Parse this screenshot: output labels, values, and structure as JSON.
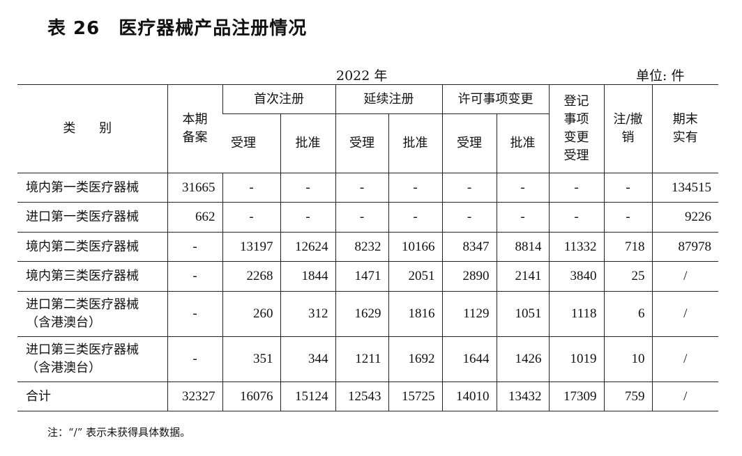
{
  "title": "表 26　医疗器械产品注册情况",
  "year": "2022 年",
  "unit": "单位: 件",
  "headers": {
    "category": "类 别",
    "filing": "本期\n备案",
    "first_reg": "首次注册",
    "renewal": "延续注册",
    "license_change": "许可事项变更",
    "accept": "受理",
    "approve": "批准",
    "reg_change": "登记\n事项\n变更\n受理",
    "cancel": "注/撤\n销",
    "end_total": "期末\n实有"
  },
  "rows": [
    {
      "label": "境内第一类医疗器械",
      "values": [
        "31665",
        "-",
        "-",
        "-",
        "-",
        "-",
        "-",
        "-",
        "-",
        "134515"
      ]
    },
    {
      "label": "进口第一类医疗器械",
      "values": [
        "662",
        "-",
        "-",
        "-",
        "-",
        "-",
        "-",
        "-",
        "-",
        "9226"
      ]
    },
    {
      "label": "境内第二类医疗器械",
      "values": [
        "-",
        "13197",
        "12624",
        "8232",
        "10166",
        "8347",
        "8814",
        "11332",
        "718",
        "87978"
      ]
    },
    {
      "label": "境内第三类医疗器械",
      "values": [
        "-",
        "2268",
        "1844",
        "1471",
        "2051",
        "2890",
        "2141",
        "3840",
        "25",
        "/"
      ]
    },
    {
      "label": "进口第二类医疗器械\n（含港澳台）",
      "values": [
        "-",
        "260",
        "312",
        "1629",
        "1816",
        "1129",
        "1051",
        "1118",
        "6",
        "/"
      ]
    },
    {
      "label": "进口第三类医疗器械\n（含港澳台）",
      "values": [
        "-",
        "351",
        "344",
        "1211",
        "1692",
        "1644",
        "1426",
        "1019",
        "10",
        "/"
      ]
    },
    {
      "label": "合计",
      "values": [
        "32327",
        "16076",
        "15124",
        "12543",
        "15725",
        "14010",
        "13432",
        "17309",
        "759",
        "/"
      ]
    }
  ],
  "note": "注：“/” 表示未获得具体数据。"
}
